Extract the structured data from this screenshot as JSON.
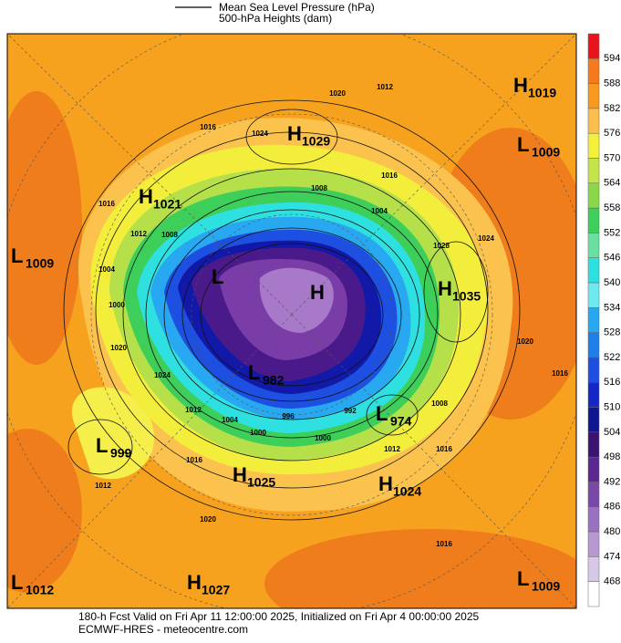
{
  "legend": {
    "items": [
      "Mean Sea Level Pressure (hPa)",
      "500-hPa Heights (dam)"
    ]
  },
  "colorbar": {
    "labels": [
      594,
      588,
      582,
      576,
      570,
      564,
      558,
      552,
      546,
      540,
      534,
      528,
      522,
      516,
      510,
      504,
      498,
      492,
      486,
      480,
      474,
      468
    ]
  },
  "centers": [
    {
      "symbol": "H",
      "value": 1019
    },
    {
      "symbol": "L",
      "value": 1009
    },
    {
      "symbol": "H",
      "value": 1029
    },
    {
      "symbol": "H",
      "value": 1021
    },
    {
      "symbol": "L",
      "value": 1009
    },
    {
      "symbol": "H",
      "value": 1035
    },
    {
      "symbol": "L",
      "value": 999
    },
    {
      "symbol": "L",
      "value": 974
    },
    {
      "symbol": "H",
      "value": 1025
    },
    {
      "symbol": "H",
      "value": 1024
    },
    {
      "symbol": "L",
      "value": 1012
    },
    {
      "symbol": "H",
      "value": 1027
    },
    {
      "symbol": "L",
      "value": 1009
    },
    {
      "symbol": "H"
    },
    {
      "symbol": "L"
    },
    {
      "symbol": "L",
      "value": 982
    }
  ],
  "contour_labels": [
    1020,
    1016,
    1024,
    1016,
    1012,
    1008,
    1016,
    1004,
    1000,
    1020,
    1024,
    1012,
    1016,
    1012,
    1008,
    1004,
    1028,
    1024,
    1020,
    1016,
    1008,
    1012,
    1016,
    1000,
    996,
    992,
    1004,
    1000,
    1016,
    1020,
    1012
  ],
  "footer": {
    "line1": "180-h Fcst Valid on Fri Apr 11 12:00:00 2025, Initialized on Fri Apr  4 00:00:00 2025",
    "line2": "ECMWF-HRES  - meteocentre.com"
  }
}
